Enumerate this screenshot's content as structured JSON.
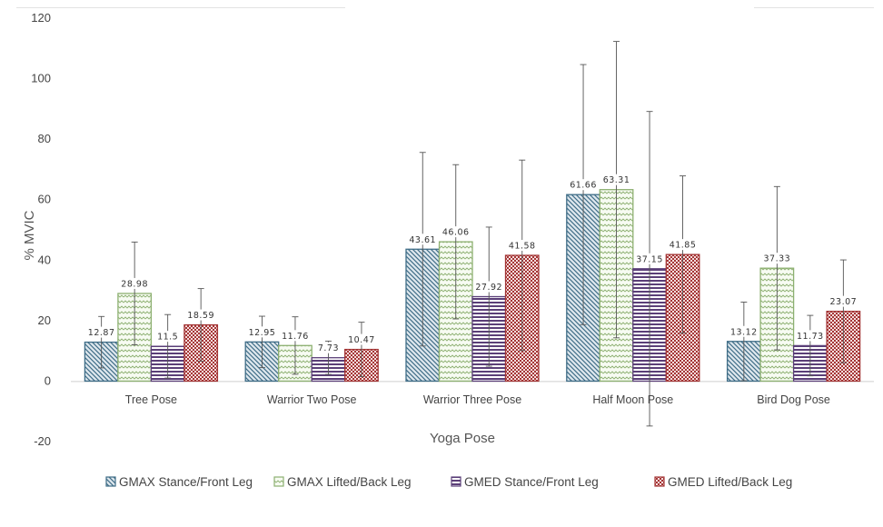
{
  "chart_data": {
    "type": "bar",
    "title": "",
    "xlabel": "Yoga Pose",
    "ylabel": "% MVIC",
    "ylim": [
      -20,
      120
    ],
    "yticks": [
      -20,
      0,
      20,
      40,
      60,
      80,
      100,
      120
    ],
    "grid": false,
    "legend_position": "bottom",
    "categories": [
      "Tree Pose",
      "Warrior Two Pose",
      "Warrior Three Pose",
      "Half Moon Pose",
      "Bird Dog Pose"
    ],
    "series": [
      {
        "name": "GMAX Stance/Front Leg",
        "values": [
          12.87,
          12.95,
          43.61,
          61.66,
          13.12
        ],
        "error": [
          8.5,
          8.5,
          32,
          43,
          13
        ],
        "labels": [
          "12.87",
          "12.95",
          "43.61",
          "61.66",
          "13.12"
        ],
        "color": "#3f6d87",
        "fill_color": "#dfe8ee",
        "pattern": "diagonal-down"
      },
      {
        "name": "GMAX Lifted/Back Leg",
        "values": [
          28.98,
          11.76,
          46.06,
          63.31,
          37.33
        ],
        "error": [
          17,
          9.5,
          25.5,
          49,
          27
        ],
        "labels": [
          "28.98",
          "11.76",
          "46.06",
          "63.31",
          "37.33"
        ],
        "color": "#8db071",
        "fill_color": "#f4f9ee",
        "pattern": "zigzag"
      },
      {
        "name": "GMED Stance/Front Leg",
        "values": [
          11.5,
          7.73,
          27.92,
          37.15,
          11.73
        ],
        "error": [
          10.5,
          5.5,
          23,
          52,
          10
        ],
        "labels": [
          "11.5",
          "7.73",
          "27.92",
          "37.15",
          "11.73"
        ],
        "color": "#5b3f78",
        "fill_color": "#efeaf4",
        "pattern": "horizontal"
      },
      {
        "name": "GMED Lifted/Back Leg",
        "values": [
          18.59,
          10.47,
          41.58,
          41.85,
          23.07
        ],
        "error": [
          12,
          9,
          31.5,
          26,
          17
        ],
        "labels": [
          "18.59",
          "10.47",
          "41.58",
          "41.85",
          "23.07"
        ],
        "color": "#a33535",
        "fill_color": "#f7e6e6",
        "pattern": "checker"
      }
    ]
  }
}
